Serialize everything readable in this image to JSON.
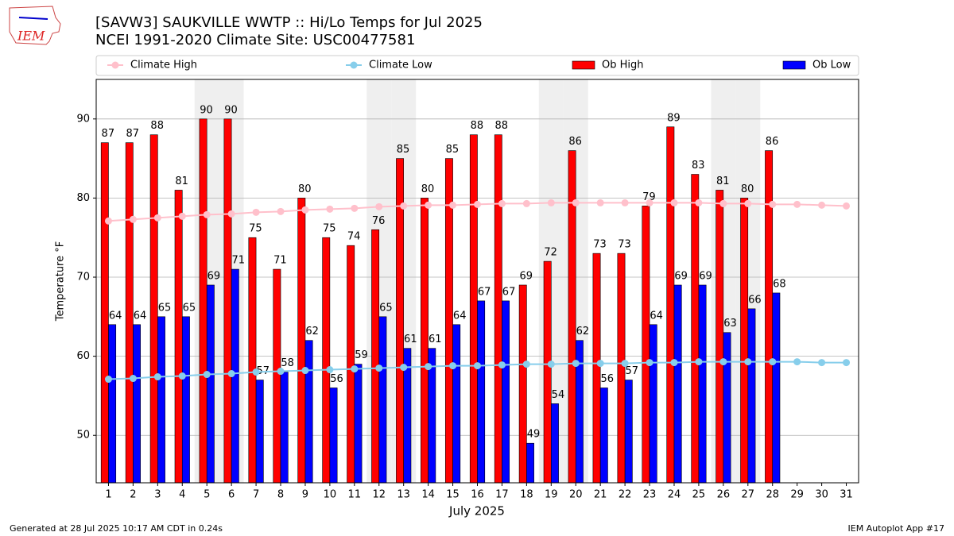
{
  "chart_data": {
    "type": "bar",
    "logo_text": "IEM",
    "title": "[SAVW3] SAUKVILLE WWTP :: Hi/Lo Temps for Jul 2025",
    "subtitle": "NCEI 1991-2020 Climate Site: USC00477581",
    "y_label": "Temperature °F",
    "x_label": "July 2025",
    "footer_left": "Generated at 28 Jul 2025 10:17 AM CDT in 0.24s",
    "footer_right": "IEM Autoplot App #17",
    "categories": [
      "1",
      "2",
      "3",
      "4",
      "5",
      "6",
      "7",
      "8",
      "9",
      "10",
      "11",
      "12",
      "13",
      "14",
      "15",
      "16",
      "17",
      "18",
      "19",
      "20",
      "21",
      "22",
      "23",
      "24",
      "25",
      "26",
      "27",
      "28",
      "29",
      "30",
      "31"
    ],
    "shaded_categories": [
      "5",
      "6",
      "12",
      "13",
      "19",
      "20",
      "26",
      "27"
    ],
    "series": [
      {
        "name": "Climate High",
        "kind": "line",
        "color": "#ffc0cb",
        "values": [
          77.1,
          77.3,
          77.5,
          77.7,
          77.9,
          78.0,
          78.2,
          78.3,
          78.5,
          78.6,
          78.7,
          78.9,
          79.0,
          79.1,
          79.1,
          79.2,
          79.3,
          79.3,
          79.4,
          79.4,
          79.4,
          79.4,
          79.4,
          79.4,
          79.4,
          79.3,
          79.3,
          79.2,
          79.2,
          79.1,
          79.0
        ]
      },
      {
        "name": "Climate Low",
        "kind": "line",
        "color": "#87ceeb",
        "values": [
          57.1,
          57.2,
          57.4,
          57.5,
          57.7,
          57.8,
          58.0,
          58.1,
          58.2,
          58.3,
          58.4,
          58.5,
          58.6,
          58.7,
          58.8,
          58.8,
          58.9,
          59.0,
          59.0,
          59.1,
          59.1,
          59.1,
          59.2,
          59.2,
          59.3,
          59.3,
          59.3,
          59.3,
          59.3,
          59.2,
          59.2
        ]
      },
      {
        "name": "Ob High",
        "kind": "bar",
        "color": "#ff0000",
        "values": [
          87,
          87,
          88,
          81,
          90,
          90,
          75,
          71,
          80,
          75,
          74,
          76,
          85,
          80,
          85,
          88,
          88,
          69,
          72,
          86,
          73,
          73,
          79,
          89,
          83,
          81,
          80,
          86,
          null,
          null,
          null
        ]
      },
      {
        "name": "Ob Low",
        "kind": "bar",
        "color": "#0000ff",
        "values": [
          64,
          64,
          65,
          65,
          69,
          71,
          57,
          58,
          62,
          56,
          59,
          65,
          61,
          61,
          64,
          67,
          67,
          49,
          54,
          62,
          56,
          57,
          64,
          69,
          69,
          63,
          66,
          68,
          null,
          null,
          null
        ]
      }
    ],
    "ylim": [
      44,
      95
    ],
    "yticks": [
      50,
      60,
      70,
      80,
      90
    ],
    "grid": true
  }
}
